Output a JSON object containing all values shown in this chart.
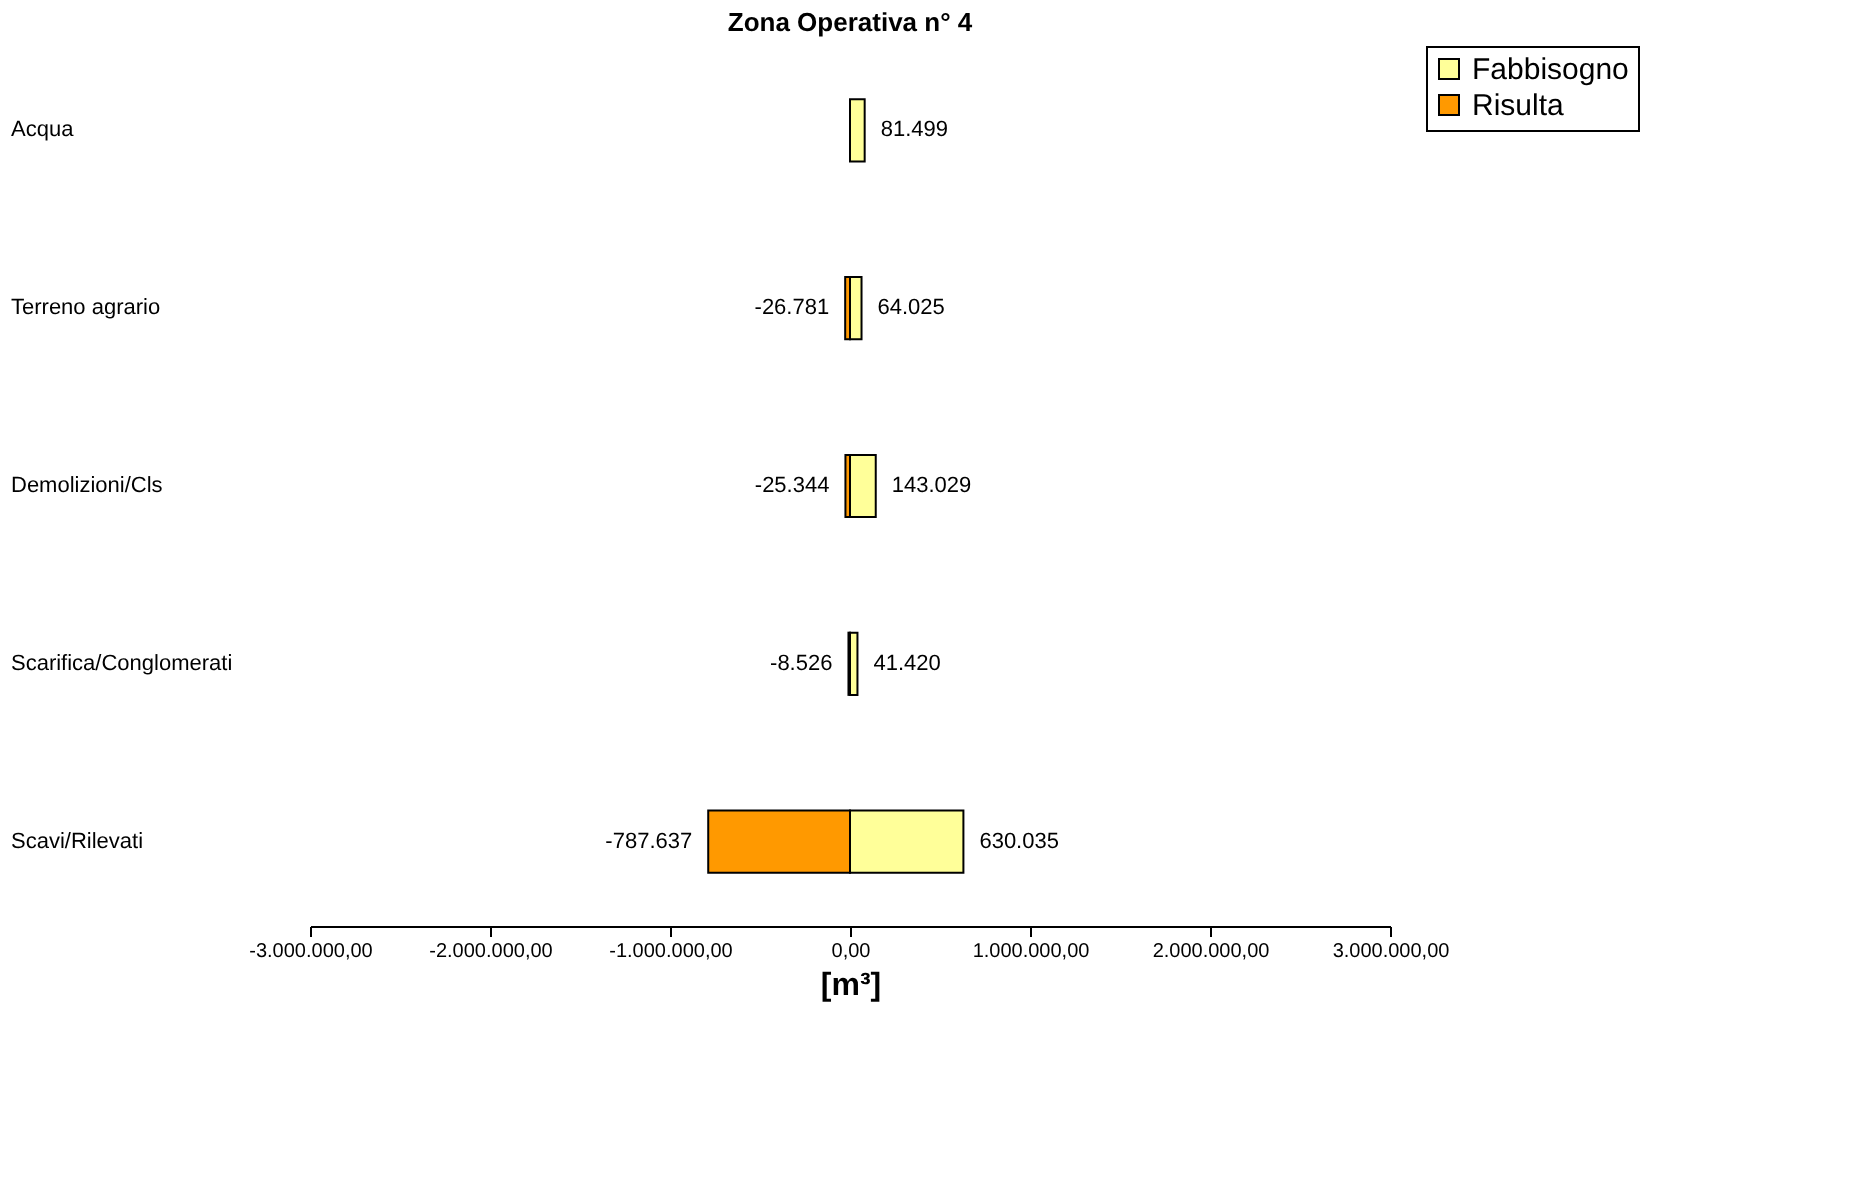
{
  "chart_data": {
    "type": "bar",
    "orientation": "horizontal",
    "title": "Zona Operativa n° 4",
    "xlabel": "[m³]",
    "categories": [
      "Acqua",
      "Terreno agrario",
      "Demolizioni/Cls",
      "Scarifica/Conglomerati",
      "Scavi/Rilevati"
    ],
    "series": [
      {
        "name": "Fabbisogno",
        "color": "#ffff99",
        "values": [
          81499,
          64025,
          143029,
          41420,
          630035
        ],
        "value_labels": [
          "81.499",
          "64.025",
          "143.029",
          "41.420",
          "630.035"
        ]
      },
      {
        "name": "Risulta",
        "color": "#ff9900",
        "values": [
          null,
          -26781,
          -25344,
          -8526,
          -787637
        ],
        "value_labels": [
          null,
          "-26.781",
          "-25.344",
          "-8.526",
          "-787.637"
        ]
      }
    ],
    "xlim": [
      -3000000,
      3000000
    ],
    "xticks": [
      {
        "value": -3000000,
        "label": "-3.000.000,00"
      },
      {
        "value": -2000000,
        "label": "-2.000.000,00"
      },
      {
        "value": -1000000,
        "label": "-1.000.000,00"
      },
      {
        "value": 0,
        "label": "0,00"
      },
      {
        "value": 1000000,
        "label": "1.000.000,00"
      },
      {
        "value": 2000000,
        "label": "2.000.000,00"
      },
      {
        "value": 3000000,
        "label": "3.000.000,00"
      }
    ],
    "grid": false,
    "legend": "right",
    "stacked": true
  }
}
